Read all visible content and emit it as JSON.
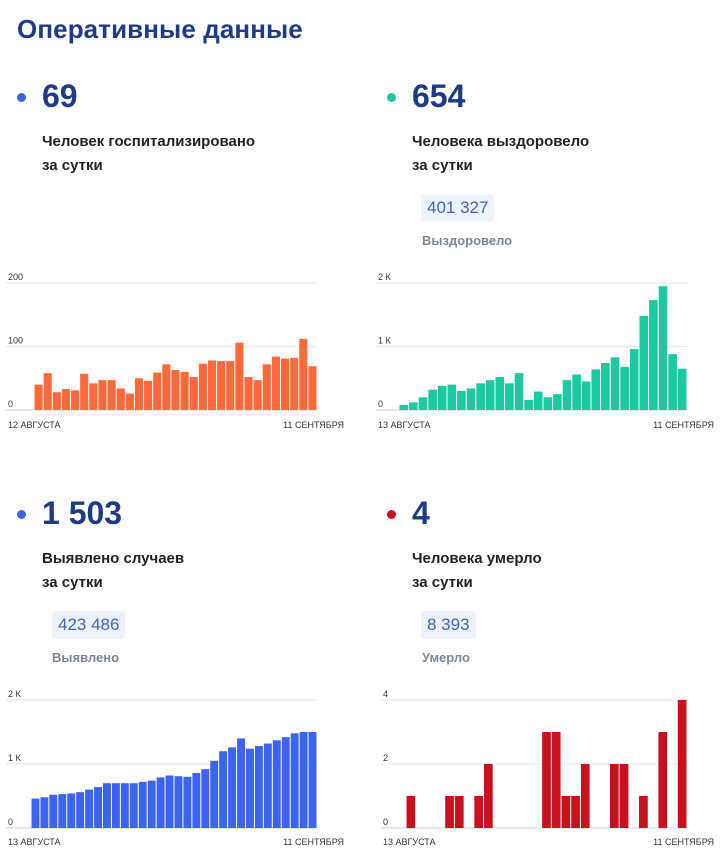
{
  "title": "Оперативные данные",
  "panels": [
    {
      "number": "69",
      "desc_line1": "Человек госпитализировано",
      "desc_line2": "за сутки",
      "total": "",
      "total_label": "",
      "color": "#ff6a3d",
      "bullet_color": "#3d64e6"
    },
    {
      "number": "654",
      "desc_line1": "Человека выздоровело",
      "desc_line2": "за сутки",
      "total": "401 327",
      "total_label": "Выздоровело",
      "color": "#1dc9a0",
      "bullet_color": "#1dc9a0"
    },
    {
      "number": "1 503",
      "desc_line1": "Выявлено случаев",
      "desc_line2": "за сутки",
      "total": "423 486",
      "total_label": "Выявлено",
      "color": "#3d64f0",
      "bullet_color": "#3d64e6"
    },
    {
      "number": "4",
      "desc_line1": "Человека умерло",
      "desc_line2": "за сутки",
      "total": "8 393",
      "total_label": "Умерло",
      "color": "#c8101e",
      "bullet_color": "#c8101e"
    }
  ],
  "chart_data": [
    {
      "type": "bar",
      "ylim": [
        0,
        200
      ],
      "yticks": [
        "0",
        "100",
        "200"
      ],
      "ytick_values": [
        0,
        100,
        200
      ],
      "x_start_label": "12 АВГУСТА",
      "x_end_label": "11 СЕНТЯБРЯ",
      "grid": true,
      "values": [
        40,
        58,
        28,
        33,
        31,
        57,
        42,
        47,
        47,
        34,
        26,
        50,
        46,
        59,
        72,
        63,
        60,
        52,
        73,
        78,
        77,
        77,
        106,
        52,
        47,
        72,
        84,
        81,
        82,
        112,
        69
      ]
    },
    {
      "type": "bar",
      "ylim": [
        0,
        2000
      ],
      "yticks": [
        "0",
        "1 К",
        "2 К"
      ],
      "ytick_values": [
        0,
        1000,
        2000
      ],
      "x_start_label": "13 АВГУСТА",
      "x_end_label": "11 СЕНТЯБРЯ",
      "grid": true,
      "values": [
        80,
        120,
        200,
        320,
        380,
        400,
        300,
        340,
        420,
        470,
        520,
        420,
        580,
        160,
        290,
        200,
        250,
        470,
        560,
        450,
        640,
        740,
        830,
        680,
        960,
        1480,
        1730,
        1950,
        880,
        650
      ]
    },
    {
      "type": "bar",
      "ylim": [
        0,
        2000
      ],
      "yticks": [
        "0",
        "1 К",
        "2 К"
      ],
      "ytick_values": [
        0,
        1000,
        2000
      ],
      "x_start_label": "13 АВГУСТА",
      "x_end_label": "11 СЕНТЯБРЯ",
      "grid": true,
      "values": [
        460,
        480,
        520,
        530,
        540,
        560,
        600,
        640,
        700,
        700,
        700,
        700,
        720,
        740,
        790,
        820,
        810,
        800,
        860,
        920,
        1050,
        1200,
        1260,
        1400,
        1240,
        1280,
        1320,
        1370,
        1420,
        1480,
        1500,
        1500
      ]
    },
    {
      "type": "bar",
      "ylim": [
        0,
        4
      ],
      "yticks": [
        "0",
        "2",
        "4"
      ],
      "ytick_values": [
        0,
        2,
        4
      ],
      "x_start_label": "13 АВГУСТА",
      "x_end_label": "11 СЕНТЯБРЯ",
      "grid": true,
      "values": [
        1,
        0,
        0,
        0,
        1,
        1,
        0,
        1,
        2,
        0,
        0,
        0,
        0,
        0,
        3,
        3,
        1,
        1,
        2,
        0,
        0,
        2,
        2,
        0,
        1,
        0,
        3,
        0,
        4
      ]
    }
  ]
}
